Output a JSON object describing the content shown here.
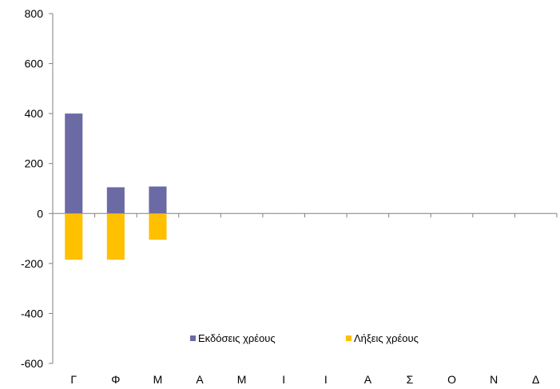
{
  "chart_data": {
    "type": "bar",
    "stacked": true,
    "categories": [
      "Γ",
      "Φ",
      "Μ",
      "Α",
      "Μ",
      "Ι",
      "Ι",
      "Α",
      "Σ",
      "Ο",
      "Ν",
      "Δ"
    ],
    "series": [
      {
        "name": "Εκδόσεις χρέους",
        "color": "#6b6aa5",
        "values": [
          400,
          105,
          108,
          null,
          null,
          null,
          null,
          null,
          null,
          null,
          null,
          null
        ]
      },
      {
        "name": "Λήξεις χρέους",
        "color": "#ffc000",
        "values": [
          -185,
          -185,
          -105,
          null,
          null,
          null,
          null,
          null,
          null,
          null,
          null,
          null
        ]
      }
    ],
    "ylim": [
      -600,
      800
    ],
    "yticks": [
      -600,
      -400,
      -200,
      0,
      200,
      400,
      600,
      800
    ],
    "grid": false,
    "legend_position": "bottom"
  }
}
